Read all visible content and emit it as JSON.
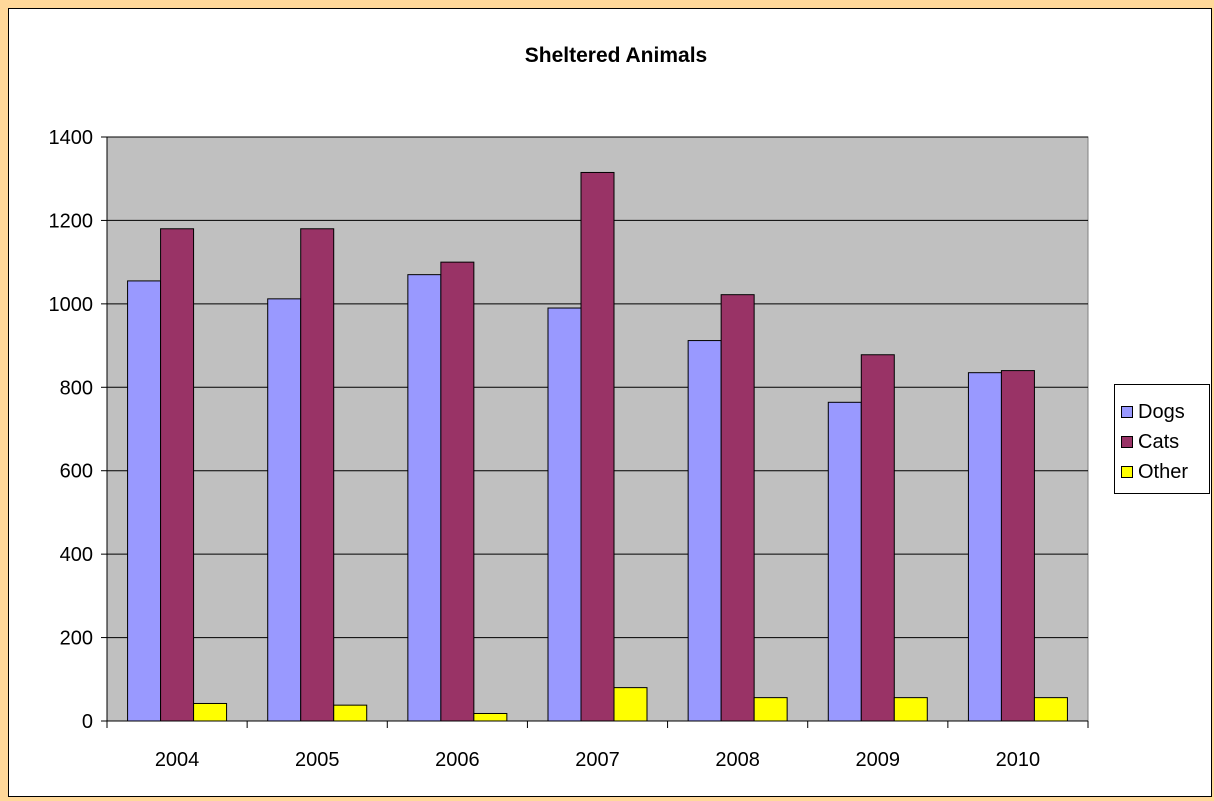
{
  "chart_data": {
    "type": "bar",
    "title": "Sheltered Animals",
    "xlabel": "",
    "ylabel": "",
    "categories": [
      "2004",
      "2005",
      "2006",
      "2007",
      "2008",
      "2009",
      "2010"
    ],
    "series": [
      {
        "name": "Dogs",
        "color": "#9999ff",
        "values": [
          1055,
          1012,
          1070,
          990,
          912,
          764,
          835
        ]
      },
      {
        "name": "Cats",
        "color": "#993366",
        "values": [
          1180,
          1180,
          1100,
          1315,
          1022,
          878,
          840
        ]
      },
      {
        "name": "Other",
        "color": "#ffff00",
        "values": [
          42,
          38,
          18,
          80,
          56,
          56,
          56
        ]
      }
    ],
    "ylim": [
      0,
      1400
    ],
    "yticks": [
      0,
      200,
      400,
      600,
      800,
      1000,
      1200,
      1400
    ],
    "grid": true,
    "legend_position": "right",
    "plot_background": "#c0c0c0"
  },
  "legend": {
    "items": [
      {
        "label": "Dogs",
        "color": "#9999ff"
      },
      {
        "label": "Cats",
        "color": "#993366"
      },
      {
        "label": "Other",
        "color": "#ffff00"
      }
    ]
  }
}
